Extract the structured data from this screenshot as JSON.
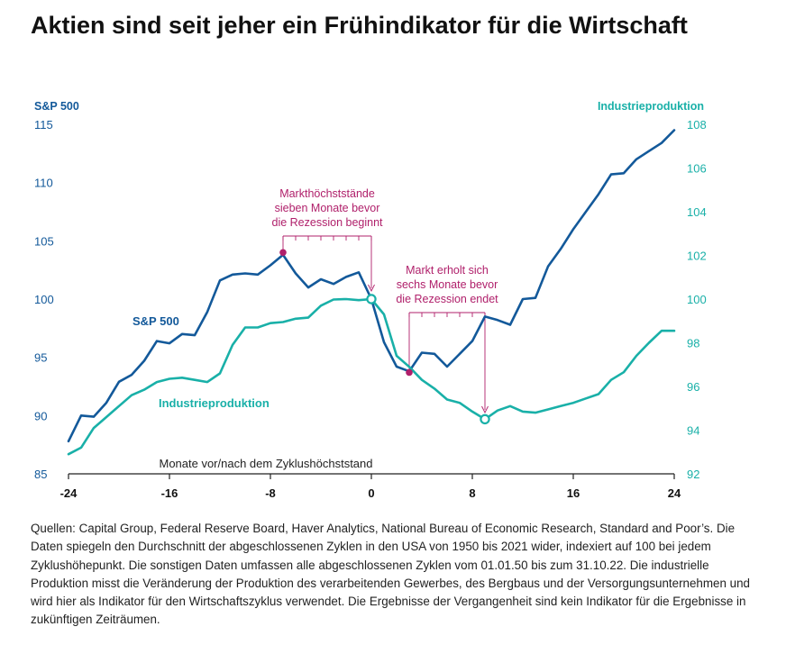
{
  "chart_data": {
    "type": "line",
    "title": "Aktien sind seit jeher ein Frühindikator für die Wirtschaft",
    "xlabel": "Monate vor/nach dem Zyklushöchststand",
    "x_ticks": [
      -24,
      -16,
      -8,
      0,
      8,
      16,
      24
    ],
    "x_tick_labels": [
      "-24",
      "-16",
      "-8",
      "0",
      "8",
      "16",
      "24"
    ],
    "xlim": [
      -24,
      24
    ],
    "y_left": {
      "label": "S&P 500",
      "ylim": [
        85,
        115
      ],
      "ticks": [
        85,
        90,
        95,
        100,
        105,
        110,
        115
      ],
      "tick_labels": [
        "85",
        "90",
        "95",
        "100",
        "105",
        "110",
        "115"
      ]
    },
    "y_right": {
      "label": "Industrieproduktion",
      "ylim": [
        92,
        108
      ],
      "ticks": [
        92,
        94,
        96,
        98,
        100,
        102,
        104,
        106,
        108
      ],
      "tick_labels": [
        "92",
        "94",
        "96",
        "98",
        "100",
        "102",
        "104",
        "106",
        "108"
      ]
    },
    "colors": {
      "sp500": "#13599a",
      "ip": "#19b0a8",
      "annotation": "#b0206b",
      "axis": "#222222",
      "tick_left": "#13599a",
      "tick_right": "#19b0a8"
    },
    "series": [
      {
        "name": "S&P 500",
        "axis": "left",
        "x": [
          -24,
          -23,
          -22,
          -21,
          -20,
          -19,
          -18,
          -17,
          -16,
          -15,
          -14,
          -13,
          -12,
          -11,
          -10,
          -9,
          -8,
          -7,
          -6,
          -5,
          -4,
          -3,
          -2,
          -1,
          0,
          1,
          2,
          3,
          4,
          5,
          6,
          7,
          8,
          9,
          10,
          11,
          12,
          13,
          14,
          15,
          16,
          17,
          18,
          19,
          20,
          21,
          22,
          23,
          24
        ],
        "values": [
          87.8,
          90.0,
          89.9,
          91.1,
          92.9,
          93.5,
          94.7,
          96.4,
          96.2,
          97.0,
          96.9,
          98.9,
          101.6,
          102.1,
          102.2,
          102.1,
          102.9,
          103.8,
          102.2,
          101.0,
          101.7,
          101.3,
          101.9,
          102.3,
          100.0,
          96.3,
          94.2,
          93.8,
          95.4,
          95.3,
          94.2,
          95.3,
          96.4,
          98.5,
          98.2,
          97.8,
          100.0,
          100.1,
          102.8,
          104.3,
          106.0,
          107.5,
          109.0,
          110.7,
          110.8,
          112.0,
          112.7,
          113.4,
          114.5
        ]
      },
      {
        "name": "Industrieproduktion",
        "axis": "right",
        "x": [
          -24,
          -23,
          -22,
          -21,
          -20,
          -19,
          -18,
          -17,
          -16,
          -15,
          -14,
          -13,
          -12,
          -11,
          -10,
          -9,
          -8,
          -7,
          -6,
          -5,
          -4,
          -3,
          -2,
          -1,
          0,
          1,
          2,
          3,
          4,
          5,
          6,
          7,
          8,
          9,
          10,
          11,
          12,
          13,
          14,
          15,
          16,
          17,
          18,
          19,
          20,
          21,
          22,
          23,
          24
        ],
        "values": [
          92.9,
          93.2,
          94.1,
          94.6,
          95.1,
          95.6,
          95.85,
          96.2,
          96.35,
          96.4,
          96.3,
          96.2,
          96.6,
          97.9,
          98.7,
          98.7,
          98.9,
          98.95,
          99.1,
          99.15,
          99.7,
          99.98,
          100.0,
          99.95,
          100.0,
          99.3,
          97.4,
          96.9,
          96.3,
          95.9,
          95.4,
          95.25,
          94.85,
          94.5,
          94.9,
          95.1,
          94.85,
          94.8,
          94.95,
          95.1,
          95.25,
          95.45,
          95.65,
          96.3,
          96.65,
          97.4,
          98.0,
          98.55,
          98.55
        ]
      }
    ],
    "series_labels": [
      "S&P 500",
      "Industrieproduktion"
    ],
    "annotations": [
      {
        "text": [
          "Markthöchststände",
          "sieben Monate bevor",
          "die Rezession beginnt"
        ]
      },
      {
        "text": [
          "Markt erholt sich",
          "sechs Monate bevor",
          "die Rezession endet"
        ]
      }
    ],
    "markers": [
      {
        "series": "S&P 500",
        "x": -7,
        "value": 104.0,
        "style": "filled"
      },
      {
        "series": "S&P 500",
        "x": 3,
        "value": 93.7,
        "style": "filled"
      },
      {
        "series": "Industrieproduktion",
        "x": 0,
        "value": 100.0,
        "style": "open"
      },
      {
        "series": "Industrieproduktion",
        "x": 9,
        "value": 94.5,
        "style": "open"
      }
    ]
  },
  "source_note": "Quellen: Capital Group, Federal Reserve Board, Haver Analytics, National Bureau of Economic Research, Standard and Poor’s. Die Daten spiegeln den Durchschnitt der abgeschlossenen Zyklen in den USA von 1950 bis 2021 wider, indexiert auf 100 bei jedem Zyklushöhepunkt. Die sonstigen Daten umfassen alle abgeschlossenen Zyklen vom 01.01.50 bis zum 31.10.22. Die industrielle Produktion misst die Veränderung der Produktion des verarbeitenden Gewerbes, des Bergbaus und der Versorgungsunternehmen und wird hier als Indikator für den Wirtschaftszyklus verwendet. Die Ergebnisse der Vergangenheit sind kein Indikator für die Ergebnisse in zukünftigen Zeiträumen."
}
